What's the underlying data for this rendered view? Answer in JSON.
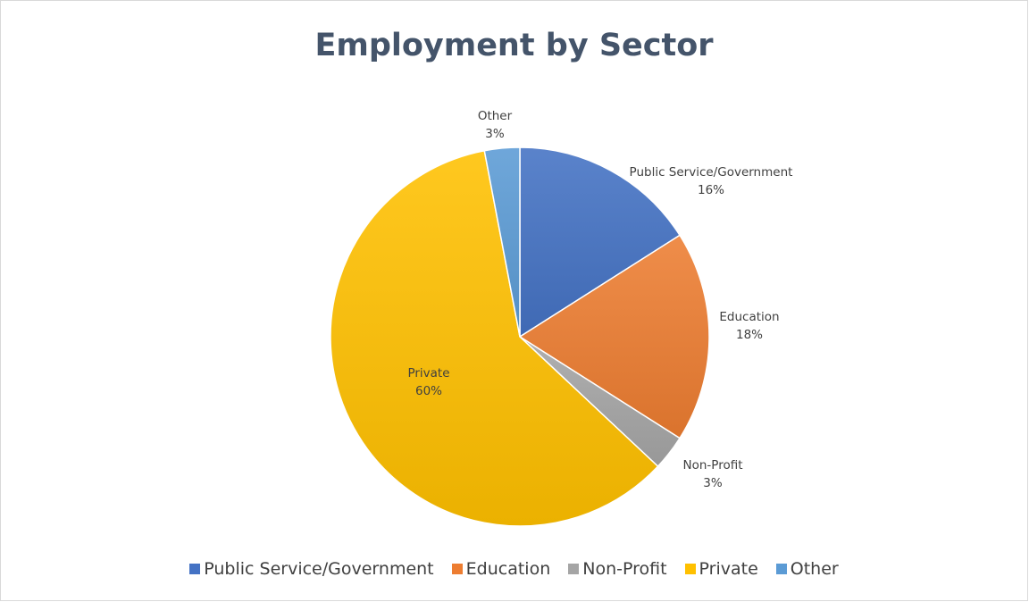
{
  "chart_data": {
    "type": "pie",
    "title": "Employment by Sector",
    "categories": [
      "Public Service/Government",
      "Education",
      "Non-Profit",
      "Private",
      "Other"
    ],
    "values": [
      16,
      18,
      3,
      60,
      3
    ],
    "value_labels": [
      "16%",
      "18%",
      "3%",
      "60%",
      "3%"
    ],
    "colors": [
      "#4472c4",
      "#ed7d31",
      "#a5a5a5",
      "#ffc000",
      "#5b9bd5"
    ],
    "legend_position": "bottom",
    "data_label_color": "#404040",
    "title_color": "#44546a"
  }
}
